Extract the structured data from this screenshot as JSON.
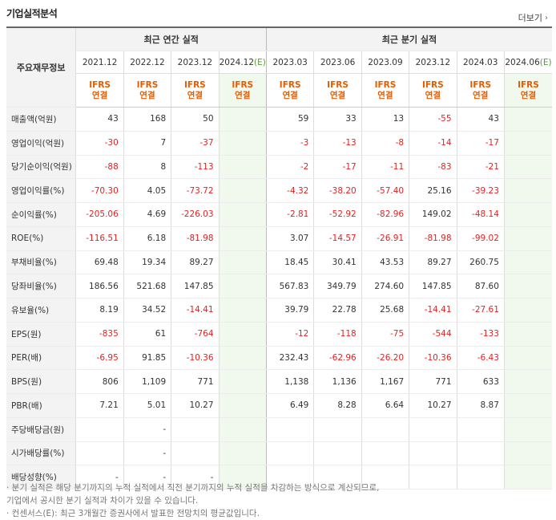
{
  "title": "기업실적분석",
  "more_label": "더보기",
  "groups": {
    "annual": "최근 연간 실적",
    "quarterly": "최근 분기 실적"
  },
  "row_header": "주요재무정보",
  "periods": [
    "2021.12",
    "2022.12",
    "2023.12",
    "2024.12",
    "2023.03",
    "2023.06",
    "2023.09",
    "2023.12",
    "2024.03",
    "2024.06"
  ],
  "estimate_mark": "(E)",
  "ifrs_top": "IFRS",
  "ifrs_bottom": "연결",
  "rows": [
    {
      "label": "매출액(억원)",
      "vals": [
        "43",
        "168",
        "50",
        "",
        "59",
        "33",
        "13",
        "-55",
        "43",
        ""
      ]
    },
    {
      "label": "영업이익(억원)",
      "vals": [
        "-30",
        "7",
        "-37",
        "",
        "-3",
        "-13",
        "-8",
        "-14",
        "-17",
        ""
      ]
    },
    {
      "label": "당기순이익(억원)",
      "vals": [
        "-88",
        "8",
        "-113",
        "",
        "-2",
        "-17",
        "-11",
        "-83",
        "-21",
        ""
      ]
    },
    {
      "label": "영업이익률(%)",
      "vals": [
        "-70.30",
        "4.05",
        "-73.72",
        "",
        "-4.32",
        "-38.20",
        "-57.40",
        "25.16",
        "-39.23",
        ""
      ]
    },
    {
      "label": "순이익률(%)",
      "vals": [
        "-205.06",
        "4.69",
        "-226.03",
        "",
        "-2.81",
        "-52.92",
        "-82.96",
        "149.02",
        "-48.14",
        ""
      ]
    },
    {
      "label": "ROE(%)",
      "vals": [
        "-116.51",
        "6.18",
        "-81.98",
        "",
        "3.07",
        "-14.57",
        "-26.91",
        "-81.98",
        "-99.02",
        ""
      ]
    },
    {
      "label": "부채비율(%)",
      "vals": [
        "69.48",
        "19.34",
        "89.27",
        "",
        "18.45",
        "30.41",
        "43.53",
        "89.27",
        "260.75",
        ""
      ]
    },
    {
      "label": "당좌비율(%)",
      "vals": [
        "186.56",
        "521.68",
        "147.85",
        "",
        "567.83",
        "349.79",
        "274.60",
        "147.85",
        "87.60",
        ""
      ]
    },
    {
      "label": "유보율(%)",
      "vals": [
        "8.19",
        "34.52",
        "-14.41",
        "",
        "39.79",
        "22.78",
        "25.68",
        "-14.41",
        "-27.61",
        ""
      ]
    },
    {
      "label": "EPS(원)",
      "vals": [
        "-835",
        "61",
        "-764",
        "",
        "-12",
        "-118",
        "-75",
        "-544",
        "-133",
        ""
      ]
    },
    {
      "label": "PER(배)",
      "vals": [
        "-6.95",
        "91.85",
        "-10.36",
        "",
        "232.43",
        "-62.96",
        "-26.20",
        "-10.36",
        "-6.43",
        ""
      ]
    },
    {
      "label": "BPS(원)",
      "vals": [
        "806",
        "1,109",
        "771",
        "",
        "1,138",
        "1,136",
        "1,167",
        "771",
        "633",
        ""
      ]
    },
    {
      "label": "PBR(배)",
      "vals": [
        "7.21",
        "5.01",
        "10.27",
        "",
        "6.49",
        "8.28",
        "6.64",
        "10.27",
        "8.87",
        ""
      ]
    },
    {
      "label": "주당배당금(원)",
      "vals": [
        "",
        "-",
        "",
        "",
        "",
        "",
        "",
        "",
        "",
        ""
      ]
    },
    {
      "label": "시가배당률(%)",
      "vals": [
        "",
        "-",
        "",
        "",
        "",
        "",
        "",
        "",
        "",
        ""
      ]
    },
    {
      "label": "배당성향(%)",
      "vals": [
        "-",
        "-",
        "-",
        "",
        "",
        "",
        "",
        "",
        "",
        ""
      ]
    }
  ],
  "notes": [
    "· 분기 실적은 해당 분기까지의 누적 실적에서 직전 분기까지의 누적 실적을 차감하는 방식으로 계산되므로,",
    "  기업에서 공시한 분기 실적과 차이가 있을 수 있습니다.",
    "· 컨센서스(E): 최근 3개월간 증권사에서 발표한 전망치의 평균값입니다."
  ]
}
